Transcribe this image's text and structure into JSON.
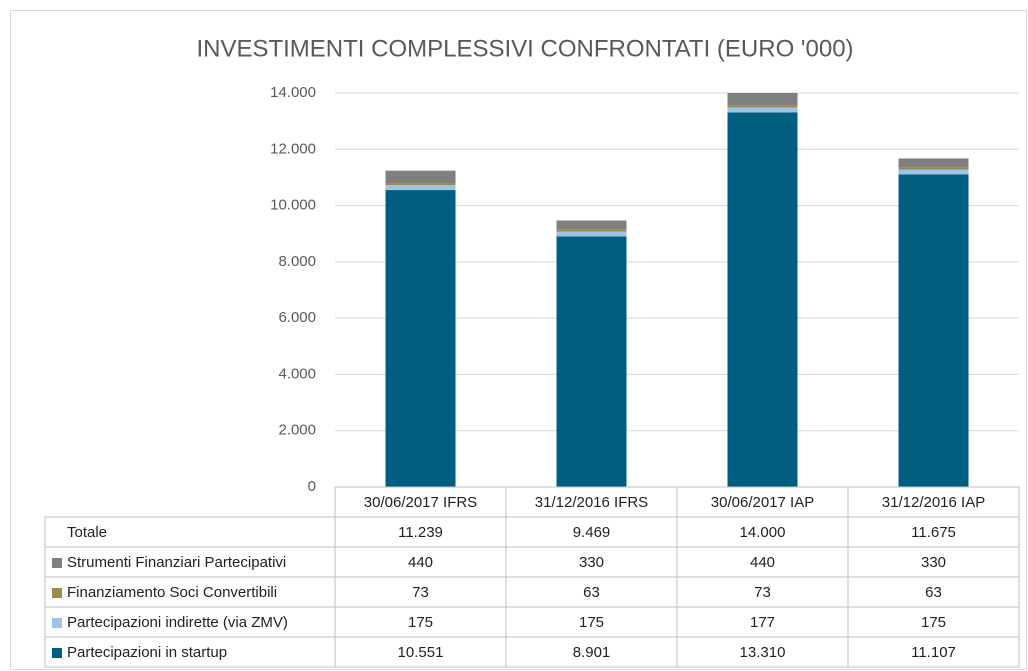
{
  "chart_data": {
    "type": "stacked_bar",
    "title": "INVESTIMENTI COMPLESSIVI CONFRONTATI (EURO '000)",
    "categories": [
      "30/06/2017 IFRS",
      "31/12/2016 IFRS",
      "30/06/2017 IAP",
      "31/12/2016 IAP"
    ],
    "series": [
      {
        "name": "Partecipazioni in startup",
        "color": "#005f7f",
        "values": [
          10551,
          8901,
          13310,
          11107
        ],
        "value_labels": [
          "10.551",
          "8.901",
          "13.310",
          "11.107"
        ]
      },
      {
        "name": "Partecipazioni indirette (via ZMV)",
        "color": "#9dc3e6",
        "values": [
          175,
          175,
          177,
          175
        ]
      },
      {
        "name": "Finanziamento Soci Convertibili",
        "color": "#9c8a4b",
        "values": [
          73,
          63,
          73,
          63
        ]
      },
      {
        "name": "Strumenti Finanziari Partecipativi",
        "color": "#7f7f7f",
        "values": [
          440,
          330,
          440,
          330
        ]
      }
    ],
    "totals": {
      "name": "Totale",
      "values": [
        11239,
        9469,
        14000,
        11675
      ],
      "value_labels": [
        "11.239",
        "9.469",
        "14.000",
        "11.675"
      ]
    },
    "ylim": [
      0,
      14000
    ],
    "yticks": [
      0,
      {
        "value": 2000,
        "label": "2.000"
      },
      {
        "value": 4000,
        "label": "4.000"
      },
      {
        "value": 6000,
        "label": "6.000"
      },
      {
        "value": 8000,
        "label": "8.000"
      },
      {
        "value": 10000,
        "label": "10.000"
      },
      {
        "value": 12000,
        "label": "12.000"
      },
      {
        "value": 14000,
        "label": "14.000"
      }
    ],
    "grid": true
  }
}
